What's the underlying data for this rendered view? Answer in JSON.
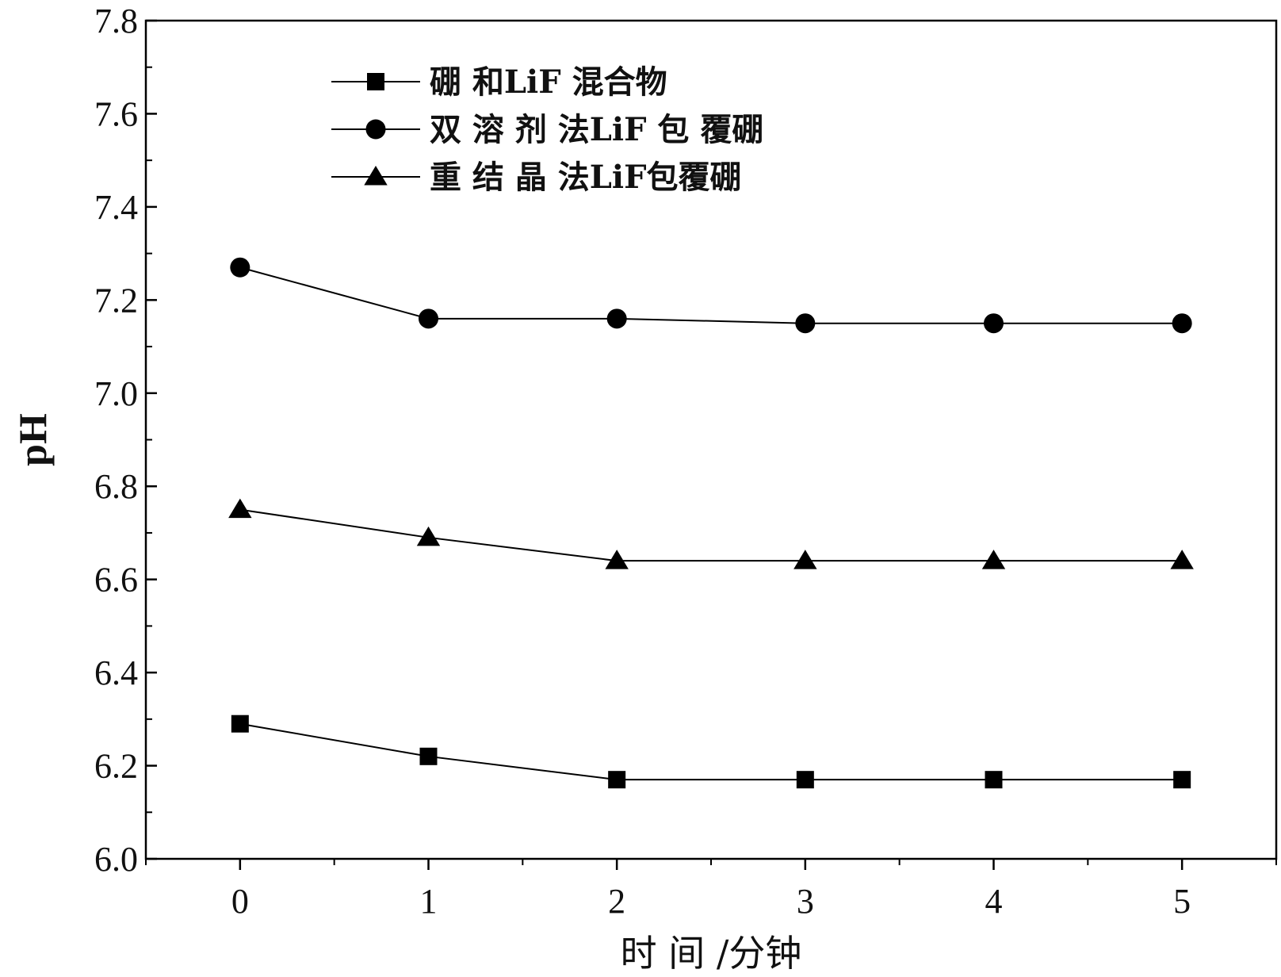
{
  "chart_data": {
    "type": "line",
    "title": "",
    "xlabel": "时 间 /分钟",
    "ylabel": "pH",
    "x": [
      0,
      1,
      2,
      3,
      4,
      5
    ],
    "xlim": [
      -0.5,
      5.5
    ],
    "ylim": [
      6.0,
      7.8
    ],
    "xticks": [
      0,
      1,
      2,
      3,
      4,
      5
    ],
    "yticks": [
      6.0,
      6.2,
      6.4,
      6.6,
      6.8,
      7.0,
      7.2,
      7.4,
      7.6,
      7.8
    ],
    "ytick_labels": [
      "6.0",
      "6.2",
      "6.4",
      "6.6",
      "6.8",
      "7.0",
      "7.2",
      "7.4",
      "7.6",
      "7.8"
    ],
    "xtick_labels": [
      "0",
      "1",
      "2",
      "3",
      "4",
      "5"
    ],
    "grid": false,
    "legend_position": "top-left",
    "series": [
      {
        "name": "硼 和LiF 混合物",
        "marker": "square",
        "color": "#000000",
        "values": [
          6.29,
          6.22,
          6.17,
          6.17,
          6.17,
          6.17
        ]
      },
      {
        "name": "双 溶 剂 法LiF 包 覆硼",
        "marker": "circle",
        "color": "#000000",
        "values": [
          7.27,
          7.16,
          7.16,
          7.15,
          7.15,
          7.15
        ]
      },
      {
        "name": "重 结 晶 法LiF包覆硼",
        "marker": "triangle",
        "color": "#000000",
        "values": [
          6.75,
          6.69,
          6.64,
          6.64,
          6.64,
          6.64
        ]
      }
    ]
  }
}
